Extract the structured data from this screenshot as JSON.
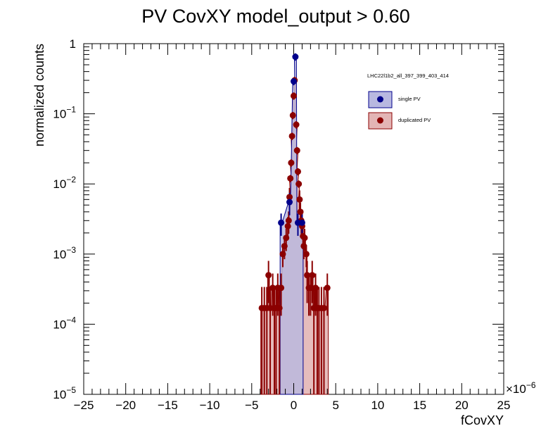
{
  "chart_data": {
    "type": "histogram",
    "title": "PV CovXY  model_output > 0.60",
    "xlabel": "fCovXY",
    "ylabel": "normalized counts",
    "x_multiplier": "×10",
    "x_multiplier_exp": "−6",
    "xlim": [
      -25,
      25
    ],
    "ylim": [
      1e-05,
      1
    ],
    "y_scale": "log",
    "x_ticks": [
      -25,
      -20,
      -15,
      -10,
      -5,
      0,
      5,
      10,
      15,
      20,
      25
    ],
    "x_tick_labels": [
      "−25",
      "−20",
      "−15",
      "−10",
      "−5",
      "0",
      "5",
      "10",
      "15",
      "20",
      "25"
    ],
    "y_ticks": [
      {
        "value": 1e-05,
        "base": "10",
        "exp": "−5"
      },
      {
        "value": 0.0001,
        "base": "10",
        "exp": "−4"
      },
      {
        "value": 0.001,
        "base": "10",
        "exp": "−3"
      },
      {
        "value": 0.01,
        "base": "10",
        "exp": "−2"
      },
      {
        "value": 0.1,
        "base": "10",
        "exp": "−1"
      },
      {
        "value": 1,
        "base": "1",
        "exp": ""
      }
    ],
    "legend": {
      "header": "LHC22l1b2_all_397_399_403_414",
      "placement": "top-right"
    },
    "series": [
      {
        "name": "single PV",
        "color": "#00008b",
        "fill": "#b8b8e0",
        "points": [
          {
            "x": -1.5,
            "y": 0.0028
          },
          {
            "x": -0.5,
            "y": 0.0055
          },
          {
            "x": 0.0,
            "y": 0.29
          },
          {
            "x": 0.2,
            "y": 0.65
          },
          {
            "x": 0.5,
            "y": 0.0028
          },
          {
            "x": 1.0,
            "y": 0.0028
          }
        ]
      },
      {
        "name": "duplicated PV",
        "color": "#8b0000",
        "fill": "#e3b5b5",
        "points": [
          {
            "x": -3.8,
            "y": 0.00017
          },
          {
            "x": -3.5,
            "y": 0.00017
          },
          {
            "x": -3.2,
            "y": 0.00017
          },
          {
            "x": -3.0,
            "y": 0.0005
          },
          {
            "x": -2.8,
            "y": 0.00017
          },
          {
            "x": -2.5,
            "y": 0.00033
          },
          {
            "x": -2.3,
            "y": 0.00017
          },
          {
            "x": -2.1,
            "y": 0.00017
          },
          {
            "x": -1.9,
            "y": 0.00033
          },
          {
            "x": -1.7,
            "y": 0.00017
          },
          {
            "x": -1.5,
            "y": 0.00033
          },
          {
            "x": -1.3,
            "y": 0.001
          },
          {
            "x": -1.1,
            "y": 0.0013
          },
          {
            "x": -0.9,
            "y": 0.0017
          },
          {
            "x": -0.7,
            "y": 0.0025
          },
          {
            "x": -0.6,
            "y": 0.003
          },
          {
            "x": -0.5,
            "y": 0.0065
          },
          {
            "x": -0.4,
            "y": 0.012
          },
          {
            "x": -0.3,
            "y": 0.02
          },
          {
            "x": -0.2,
            "y": 0.048
          },
          {
            "x": -0.1,
            "y": 0.095
          },
          {
            "x": 0.0,
            "y": 0.18
          },
          {
            "x": 0.1,
            "y": 0.3
          },
          {
            "x": 0.3,
            "y": 0.07
          },
          {
            "x": 0.4,
            "y": 0.03
          },
          {
            "x": 0.5,
            "y": 0.015
          },
          {
            "x": 0.6,
            "y": 0.01
          },
          {
            "x": 0.7,
            "y": 0.006
          },
          {
            "x": 0.8,
            "y": 0.004
          },
          {
            "x": 0.9,
            "y": 0.003
          },
          {
            "x": 1.0,
            "y": 0.0025
          },
          {
            "x": 1.1,
            "y": 0.0018
          },
          {
            "x": 1.2,
            "y": 0.0013
          },
          {
            "x": 1.3,
            "y": 0.0017
          },
          {
            "x": 1.5,
            "y": 0.001
          },
          {
            "x": 1.6,
            "y": 0.0005
          },
          {
            "x": 1.8,
            "y": 0.00033
          },
          {
            "x": 2.0,
            "y": 0.00033
          },
          {
            "x": 2.2,
            "y": 0.0005
          },
          {
            "x": 2.4,
            "y": 0.00017
          },
          {
            "x": 2.6,
            "y": 0.00033
          },
          {
            "x": 2.8,
            "y": 0.00017
          },
          {
            "x": 3.0,
            "y": 0.00017
          },
          {
            "x": 3.3,
            "y": 0.00017
          },
          {
            "x": 3.6,
            "y": 0.00017
          },
          {
            "x": 4.0,
            "y": 0.00033
          }
        ]
      }
    ]
  }
}
